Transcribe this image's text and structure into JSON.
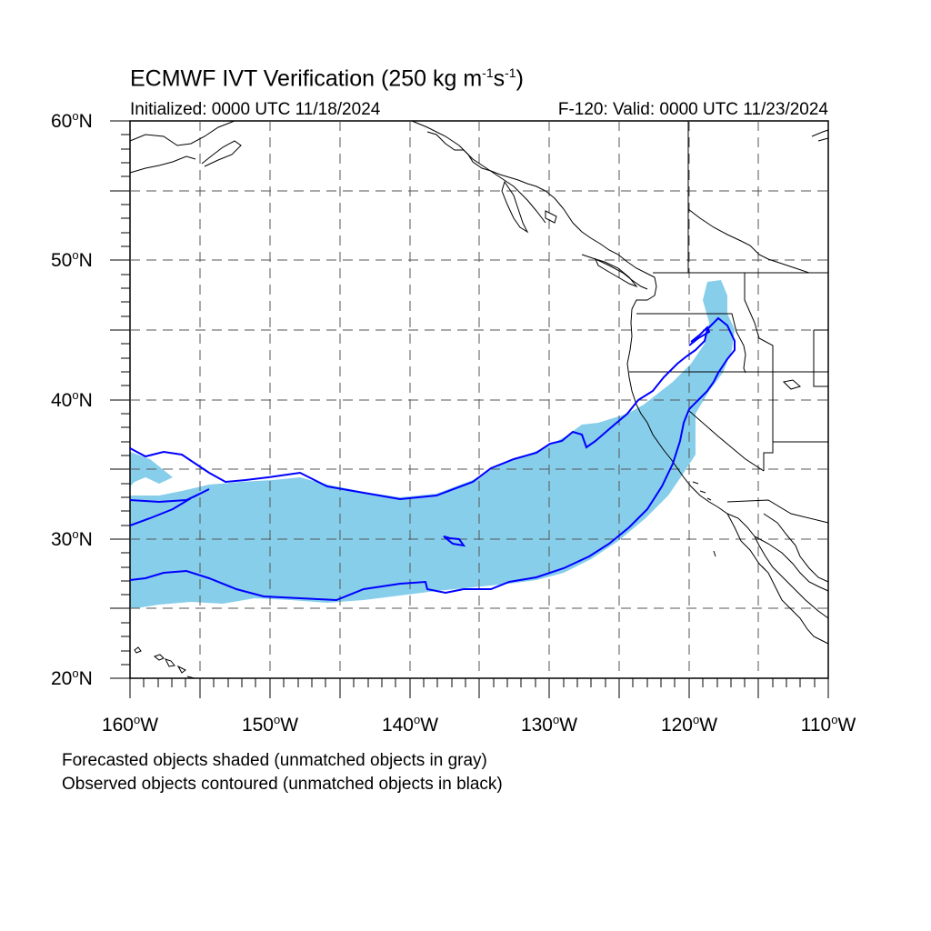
{
  "title": {
    "main": "ECMWF IVT Verification (250 kg m",
    "exp1": "-1",
    "mid": "s",
    "exp2": "-1",
    "end": ")"
  },
  "subtitle": {
    "left": "Initialized: 0000 UTC 11/18/2024",
    "right": "F-120: Valid: 0000 UTC 11/23/2024"
  },
  "axes": {
    "lat_labels": [
      {
        "value": "60",
        "suffix": "N"
      },
      {
        "value": "50",
        "suffix": "N"
      },
      {
        "value": "40",
        "suffix": "N"
      },
      {
        "value": "30",
        "suffix": "N"
      },
      {
        "value": "20",
        "suffix": "N"
      }
    ],
    "lon_labels": [
      {
        "value": "160",
        "suffix": "W"
      },
      {
        "value": "150",
        "suffix": "W"
      },
      {
        "value": "140",
        "suffix": "W"
      },
      {
        "value": "130",
        "suffix": "W"
      },
      {
        "value": "120",
        "suffix": "W"
      },
      {
        "value": "110",
        "suffix": "W"
      }
    ],
    "lon_range": [
      -160,
      -110
    ],
    "lat_range": [
      20,
      60
    ],
    "grid": true
  },
  "colors": {
    "forecast_fill": "#87ceeb",
    "observed_contour": "#0000ff",
    "coastline": "#000000"
  },
  "footer": {
    "line1": "Forecasted objects shaded (unmatched objects in gray)",
    "line2": "Observed objects contoured (unmatched objects in black)"
  }
}
